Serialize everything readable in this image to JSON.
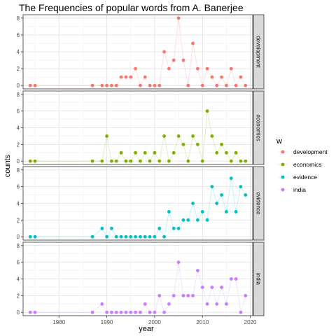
{
  "chart_data": {
    "type": "line",
    "title": "The Frequencies of popular words from A. Banerjee",
    "xlabel": "year",
    "ylabel": "counts",
    "xlim": [
      1972.5,
      2020.5
    ],
    "ylim": [
      -0.4,
      8.4
    ],
    "x_ticks": [
      1980,
      1990,
      2000,
      2010,
      2020
    ],
    "y_ticks": [
      0,
      2,
      4,
      6,
      8
    ],
    "grid": true,
    "facets": "stacked by word, strip labels on the right",
    "legend": {
      "title": "w",
      "placement": "right"
    },
    "series": [
      {
        "name": "development",
        "color": "#F8766D",
        "points": [
          [
            1974,
            0
          ],
          [
            1975,
            0
          ],
          [
            1987,
            0
          ],
          [
            1989,
            0
          ],
          [
            1990,
            0
          ],
          [
            1991,
            0
          ],
          [
            1992,
            0
          ],
          [
            1993,
            1
          ],
          [
            1994,
            1
          ],
          [
            1995,
            1
          ],
          [
            1996,
            2
          ],
          [
            1997,
            0
          ],
          [
            1998,
            1
          ],
          [
            1999,
            0
          ],
          [
            2000,
            0
          ],
          [
            2001,
            0
          ],
          [
            2002,
            4
          ],
          [
            2003,
            2
          ],
          [
            2004,
            3
          ],
          [
            2005,
            8
          ],
          [
            2006,
            3
          ],
          [
            2007,
            0
          ],
          [
            2008,
            5
          ],
          [
            2009,
            2
          ],
          [
            2010,
            0
          ],
          [
            2011,
            2
          ],
          [
            2012,
            1
          ],
          [
            2013,
            0
          ],
          [
            2014,
            1
          ],
          [
            2015,
            0
          ],
          [
            2016,
            2
          ],
          [
            2017,
            0
          ],
          [
            2018,
            1
          ],
          [
            2019,
            0
          ]
        ]
      },
      {
        "name": "economics",
        "color": "#7CAE00",
        "points": [
          [
            1974,
            0
          ],
          [
            1975,
            0
          ],
          [
            1987,
            0
          ],
          [
            1989,
            0
          ],
          [
            1990,
            3
          ],
          [
            1991,
            0
          ],
          [
            1992,
            0
          ],
          [
            1993,
            1
          ],
          [
            1994,
            0
          ],
          [
            1995,
            0
          ],
          [
            1996,
            1
          ],
          [
            1997,
            0
          ],
          [
            1998,
            1
          ],
          [
            1999,
            0
          ],
          [
            2000,
            1
          ],
          [
            2001,
            0
          ],
          [
            2002,
            3
          ],
          [
            2003,
            0
          ],
          [
            2004,
            1
          ],
          [
            2005,
            3
          ],
          [
            2006,
            2
          ],
          [
            2007,
            0
          ],
          [
            2008,
            3
          ],
          [
            2009,
            2
          ],
          [
            2010,
            0
          ],
          [
            2011,
            6
          ],
          [
            2012,
            3
          ],
          [
            2013,
            1
          ],
          [
            2014,
            2
          ],
          [
            2015,
            1
          ],
          [
            2016,
            0
          ],
          [
            2017,
            1
          ],
          [
            2018,
            0
          ],
          [
            2019,
            0
          ]
        ]
      },
      {
        "name": "evidence",
        "color": "#00BFC4",
        "points": [
          [
            1974,
            0
          ],
          [
            1975,
            0
          ],
          [
            1987,
            0
          ],
          [
            1989,
            1
          ],
          [
            1990,
            0
          ],
          [
            1991,
            1
          ],
          [
            1992,
            0
          ],
          [
            1993,
            0
          ],
          [
            1994,
            0
          ],
          [
            1995,
            0
          ],
          [
            1996,
            0
          ],
          [
            1997,
            0
          ],
          [
            1998,
            0
          ],
          [
            1999,
            0
          ],
          [
            2000,
            0
          ],
          [
            2001,
            1
          ],
          [
            2002,
            0
          ],
          [
            2003,
            3
          ],
          [
            2004,
            1
          ],
          [
            2005,
            1
          ],
          [
            2006,
            2
          ],
          [
            2007,
            2
          ],
          [
            2008,
            4
          ],
          [
            2009,
            2
          ],
          [
            2010,
            3
          ],
          [
            2011,
            2
          ],
          [
            2012,
            6
          ],
          [
            2013,
            4
          ],
          [
            2014,
            5
          ],
          [
            2015,
            3
          ],
          [
            2016,
            7
          ],
          [
            2017,
            3
          ],
          [
            2018,
            6
          ],
          [
            2019,
            5
          ]
        ]
      },
      {
        "name": "india",
        "color": "#C77CFF",
        "points": [
          [
            1974,
            0
          ],
          [
            1975,
            0
          ],
          [
            1987,
            0
          ],
          [
            1989,
            1
          ],
          [
            1990,
            0
          ],
          [
            1991,
            0
          ],
          [
            1992,
            0
          ],
          [
            1993,
            0
          ],
          [
            1994,
            0
          ],
          [
            1995,
            0
          ],
          [
            1996,
            0
          ],
          [
            1997,
            0
          ],
          [
            1998,
            1
          ],
          [
            1999,
            0
          ],
          [
            2000,
            0
          ],
          [
            2001,
            2
          ],
          [
            2002,
            0
          ],
          [
            2003,
            1
          ],
          [
            2004,
            2
          ],
          [
            2005,
            6
          ],
          [
            2006,
            2
          ],
          [
            2007,
            2
          ],
          [
            2008,
            2
          ],
          [
            2009,
            5
          ],
          [
            2010,
            3
          ],
          [
            2011,
            1
          ],
          [
            2012,
            3
          ],
          [
            2013,
            1
          ],
          [
            2014,
            3
          ],
          [
            2015,
            1
          ],
          [
            2016,
            4
          ],
          [
            2017,
            4
          ],
          [
            2018,
            0
          ],
          [
            2019,
            2
          ]
        ]
      }
    ]
  }
}
